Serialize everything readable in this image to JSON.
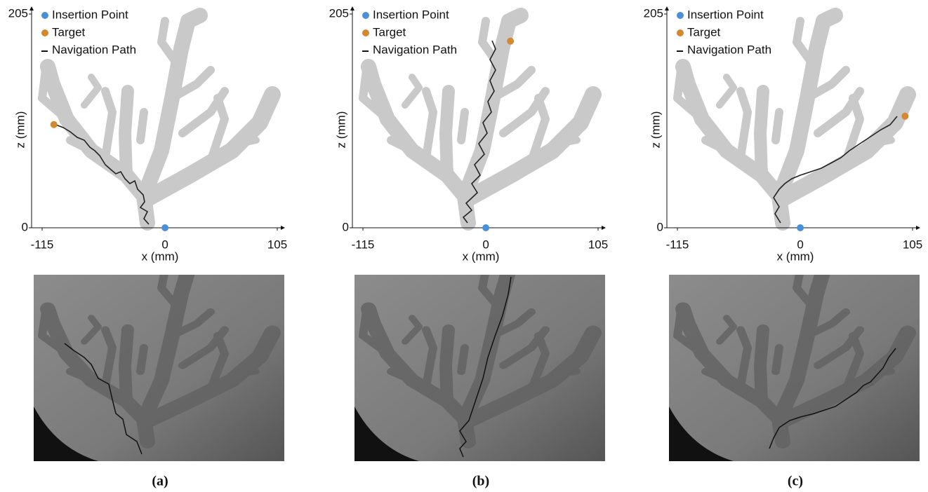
{
  "panels": [
    {
      "caption": "(a)",
      "legend": [
        "Insertion Point",
        "Target",
        "Navigation Path"
      ],
      "x_label": "x (mm)",
      "z_label": "z (mm)",
      "xlim": [
        -115,
        105
      ],
      "zlim": [
        0,
        205
      ],
      "xticks": [
        -115,
        0,
        105
      ],
      "zticks": [
        0,
        205
      ],
      "insertion": [
        0,
        0
      ],
      "target": [
        -104,
        99
      ],
      "insertion_color": "#4a90d9",
      "target_color": "#d4882f"
    },
    {
      "caption": "(b)",
      "legend": [
        "Insertion Point",
        "Target",
        "Navigation Path"
      ],
      "x_label": "x (mm)",
      "z_label": "z (mm)",
      "xlim": [
        -115,
        105
      ],
      "zlim": [
        0,
        205
      ],
      "xticks": [
        -115,
        0,
        105
      ],
      "zticks": [
        0,
        205
      ],
      "insertion": [
        0,
        0
      ],
      "target": [
        23,
        179
      ],
      "insertion_color": "#4a90d9",
      "target_color": "#d4882f"
    },
    {
      "caption": "(c)",
      "legend": [
        "Insertion Point",
        "Target",
        "Navigation Path"
      ],
      "x_label": "x (mm)",
      "z_label": "z (mm)",
      "xlim": [
        -115,
        105
      ],
      "zlim": [
        0,
        205
      ],
      "xticks": [
        -115,
        0,
        105
      ],
      "zticks": [
        0,
        205
      ],
      "insertion": [
        0,
        0
      ],
      "target": [
        98,
        107
      ],
      "insertion_color": "#4a90d9",
      "target_color": "#d4882f"
    }
  ]
}
